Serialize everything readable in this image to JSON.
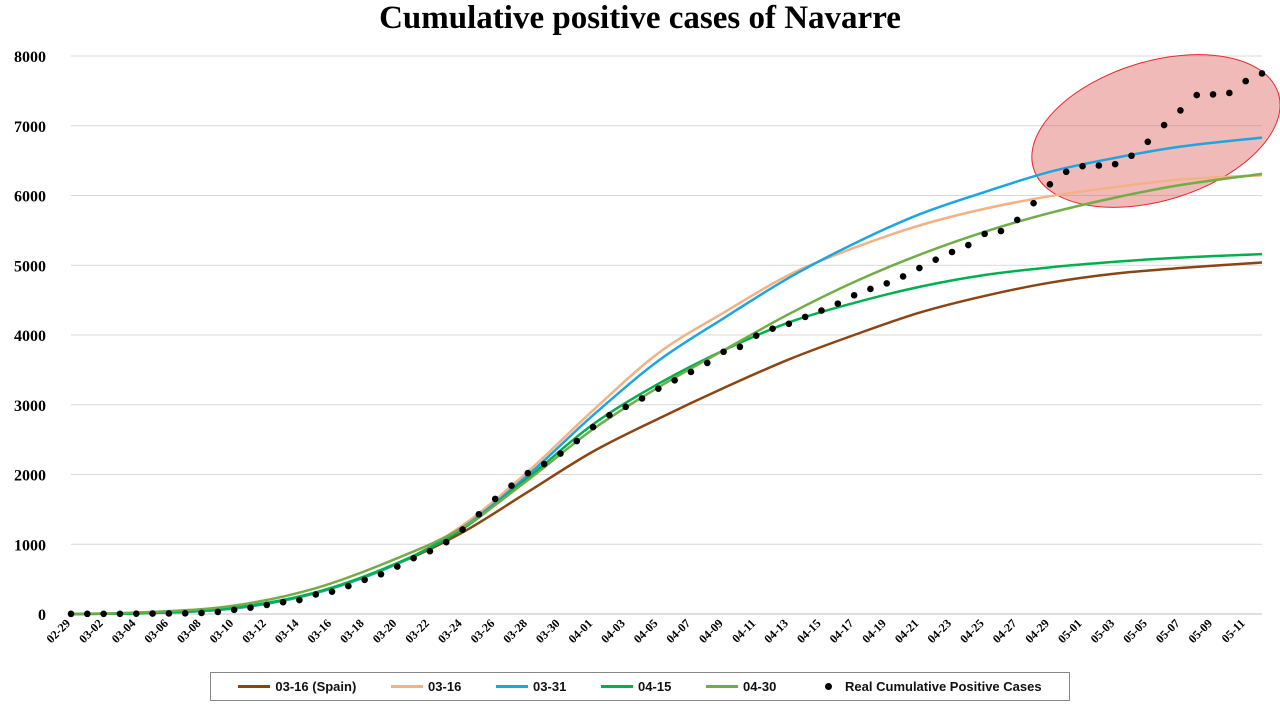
{
  "chart_data": {
    "type": "line",
    "title": "Cumulative positive cases of Navarre",
    "xlabel": "",
    "ylabel": "",
    "ylim": [
      0,
      8000
    ],
    "yticks": [
      0,
      1000,
      2000,
      3000,
      4000,
      5000,
      6000,
      7000,
      8000
    ],
    "grid": true,
    "legend_position": "bottom",
    "x_start": "02-29",
    "x_end": "05-12",
    "x_tick_labels": [
      "02-29",
      "03-02",
      "03-04",
      "03-06",
      "03-08",
      "03-10",
      "03-12",
      "03-14",
      "03-16",
      "03-18",
      "03-20",
      "03-22",
      "03-24",
      "03-26",
      "03-28",
      "03-30",
      "04-01",
      "04-03",
      "04-05",
      "04-07",
      "04-09",
      "04-11",
      "04-13",
      "04-15",
      "04-17",
      "04-19",
      "04-21",
      "04-23",
      "04-25",
      "04-27",
      "04-29",
      "05-01",
      "05-03",
      "05-05",
      "05-07",
      "05-09",
      "05-11"
    ],
    "series": [
      {
        "name": "03-16 (Spain)",
        "color": "#8B4513",
        "kind": "line",
        "x": [
          "02-29",
          "03-05",
          "03-10",
          "03-15",
          "03-20",
          "03-24",
          "03-28",
          "04-01",
          "04-05",
          "04-09",
          "04-13",
          "04-17",
          "04-21",
          "04-25",
          "04-29",
          "05-03",
          "05-07",
          "05-12"
        ],
        "y": [
          0,
          15,
          80,
          300,
          720,
          1170,
          1750,
          2330,
          2800,
          3240,
          3650,
          4000,
          4320,
          4560,
          4750,
          4880,
          4960,
          5040
        ]
      },
      {
        "name": "03-16",
        "color": "#F4B183",
        "kind": "line",
        "x": [
          "02-29",
          "03-05",
          "03-10",
          "03-15",
          "03-20",
          "03-24",
          "03-28",
          "04-01",
          "04-05",
          "04-09",
          "04-13",
          "04-17",
          "04-21",
          "04-25",
          "04-29",
          "05-03",
          "05-07",
          "05-12"
        ],
        "y": [
          0,
          15,
          80,
          300,
          720,
          1270,
          2040,
          2920,
          3740,
          4320,
          4860,
          5250,
          5570,
          5810,
          5990,
          6120,
          6230,
          6290
        ]
      },
      {
        "name": "03-31",
        "color": "#1CA5E0",
        "kind": "line",
        "x": [
          "02-29",
          "03-05",
          "03-10",
          "03-15",
          "03-20",
          "03-24",
          "03-28",
          "04-01",
          "04-05",
          "04-09",
          "04-13",
          "04-17",
          "04-21",
          "04-25",
          "04-29",
          "05-03",
          "05-07",
          "05-12"
        ],
        "y": [
          0,
          15,
          80,
          300,
          720,
          1240,
          1990,
          2850,
          3630,
          4240,
          4820,
          5310,
          5730,
          6050,
          6340,
          6540,
          6700,
          6830
        ]
      },
      {
        "name": "04-15",
        "color": "#00B050",
        "kind": "line",
        "x": [
          "02-29",
          "03-05",
          "03-10",
          "03-15",
          "03-20",
          "03-24",
          "03-28",
          "04-01",
          "04-05",
          "04-09",
          "04-13",
          "04-17",
          "04-21",
          "04-25",
          "04-29",
          "05-03",
          "05-07",
          "05-12"
        ],
        "y": [
          0,
          15,
          90,
          310,
          730,
          1220,
          1950,
          2720,
          3300,
          3780,
          4180,
          4460,
          4690,
          4860,
          4970,
          5050,
          5110,
          5160
        ]
      },
      {
        "name": "04-30",
        "color": "#70AD47",
        "kind": "line",
        "x": [
          "02-29",
          "03-05",
          "03-10",
          "03-15",
          "03-20",
          "03-24",
          "03-28",
          "04-01",
          "04-05",
          "04-09",
          "04-13",
          "04-17",
          "04-21",
          "04-25",
          "04-29",
          "05-03",
          "05-07",
          "05-12"
        ],
        "y": [
          0,
          30,
          120,
          370,
          800,
          1240,
          1920,
          2650,
          3250,
          3780,
          4300,
          4760,
          5150,
          5480,
          5750,
          5970,
          6150,
          6310
        ]
      },
      {
        "name": "Real Cumulative Positive Cases",
        "color": "#000000",
        "kind": "scatter",
        "x": [
          "02-29",
          "03-01",
          "03-02",
          "03-03",
          "03-04",
          "03-05",
          "03-06",
          "03-07",
          "03-08",
          "03-09",
          "03-10",
          "03-11",
          "03-12",
          "03-13",
          "03-14",
          "03-15",
          "03-16",
          "03-17",
          "03-18",
          "03-19",
          "03-20",
          "03-21",
          "03-22",
          "03-23",
          "03-24",
          "03-25",
          "03-26",
          "03-27",
          "03-28",
          "03-29",
          "03-30",
          "03-31",
          "04-01",
          "04-02",
          "04-03",
          "04-04",
          "04-05",
          "04-06",
          "04-07",
          "04-08",
          "04-09",
          "04-10",
          "04-11",
          "04-12",
          "04-13",
          "04-14",
          "04-15",
          "04-16",
          "04-17",
          "04-18",
          "04-19",
          "04-20",
          "04-21",
          "04-22",
          "04-23",
          "04-24",
          "04-25",
          "04-26",
          "04-27",
          "04-28",
          "04-29",
          "04-30",
          "05-01",
          "05-02",
          "05-03",
          "05-04",
          "05-05",
          "05-06",
          "05-07",
          "05-08",
          "05-09",
          "05-10",
          "05-11",
          "05-12"
        ],
        "y": [
          2,
          2,
          3,
          3,
          4,
          6,
          8,
          10,
          15,
          30,
          60,
          90,
          130,
          170,
          200,
          280,
          320,
          400,
          490,
          570,
          680,
          800,
          900,
          1030,
          1210,
          1430,
          1650,
          1840,
          2020,
          2150,
          2300,
          2480,
          2680,
          2850,
          2970,
          3090,
          3230,
          3350,
          3470,
          3600,
          3760,
          3830,
          3990,
          4090,
          4160,
          4260,
          4350,
          4450,
          4570,
          4660,
          4740,
          4840,
          4960,
          5080,
          5190,
          5290,
          5450,
          5490,
          5650,
          5890,
          6160,
          6340,
          6420,
          6430,
          6450,
          6570,
          6770,
          7010,
          7220,
          7440,
          7450,
          7470,
          7640,
          7750
        ]
      }
    ],
    "highlight": {
      "shape": "ellipse",
      "color": "#D9534F",
      "x_range": [
        "04-29",
        "05-12"
      ],
      "y_range": [
        6100,
        7750
      ]
    }
  }
}
